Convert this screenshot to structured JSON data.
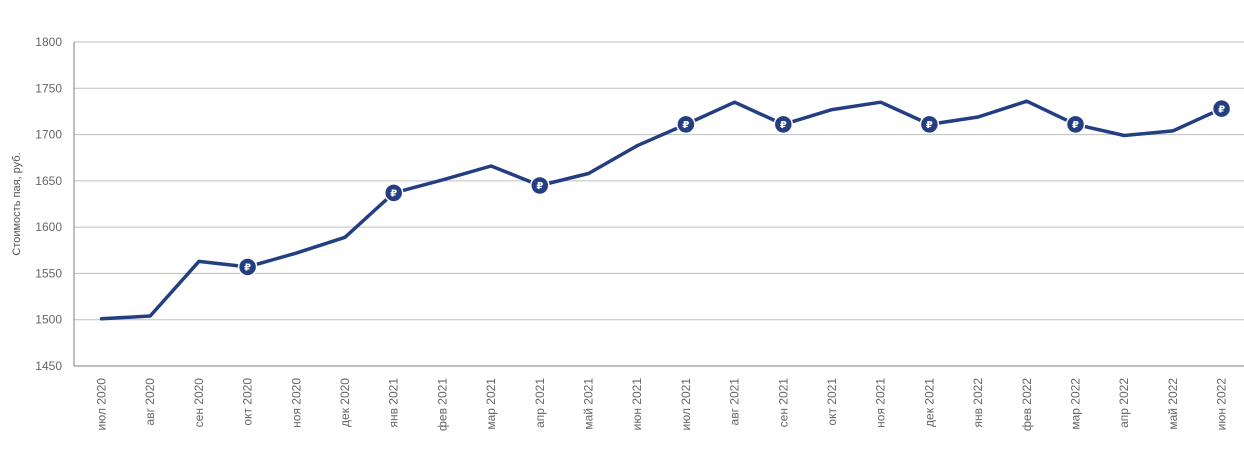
{
  "chart_data": {
    "type": "line",
    "title": "",
    "xlabel": "",
    "ylabel": "Стоимость пая, руб.",
    "ylim": [
      1450,
      1800
    ],
    "yticks": [
      1450,
      1500,
      1550,
      1600,
      1650,
      1700,
      1750,
      1800
    ],
    "grid": true,
    "legend": "none",
    "categories": [
      "июл 2020",
      "авг 2020",
      "сен 2020",
      "окт 2020",
      "ноя 2020",
      "дек 2020",
      "янв 2021",
      "фев 2021",
      "мар 2021",
      "апр 2021",
      "май 2021",
      "июн 2021",
      "июл 2021",
      "авг 2021",
      "сен 2021",
      "окт 2021",
      "ноя 2021",
      "дек 2021",
      "янв 2022",
      "фев 2022",
      "мар 2022",
      "апр 2022",
      "май 2022",
      "июн 2022"
    ],
    "series": [
      {
        "values": [
          1501,
          1504,
          1563,
          1557,
          1572,
          1589,
          1637,
          1651,
          1666,
          1645,
          1658,
          1688,
          1711,
          1735,
          1711,
          1727,
          1735,
          1711,
          1719,
          1736,
          1711,
          1699,
          1704,
          1728
        ],
        "color": "#233f82"
      }
    ],
    "markers": {
      "symbol": "₽",
      "color": "#233f82",
      "icon": "ruble-icon",
      "indices": [
        3,
        6,
        9,
        12,
        14,
        17,
        20,
        23
      ]
    },
    "gridline_color": "#bfbfbf",
    "axis_color": "#7f7f7f"
  }
}
